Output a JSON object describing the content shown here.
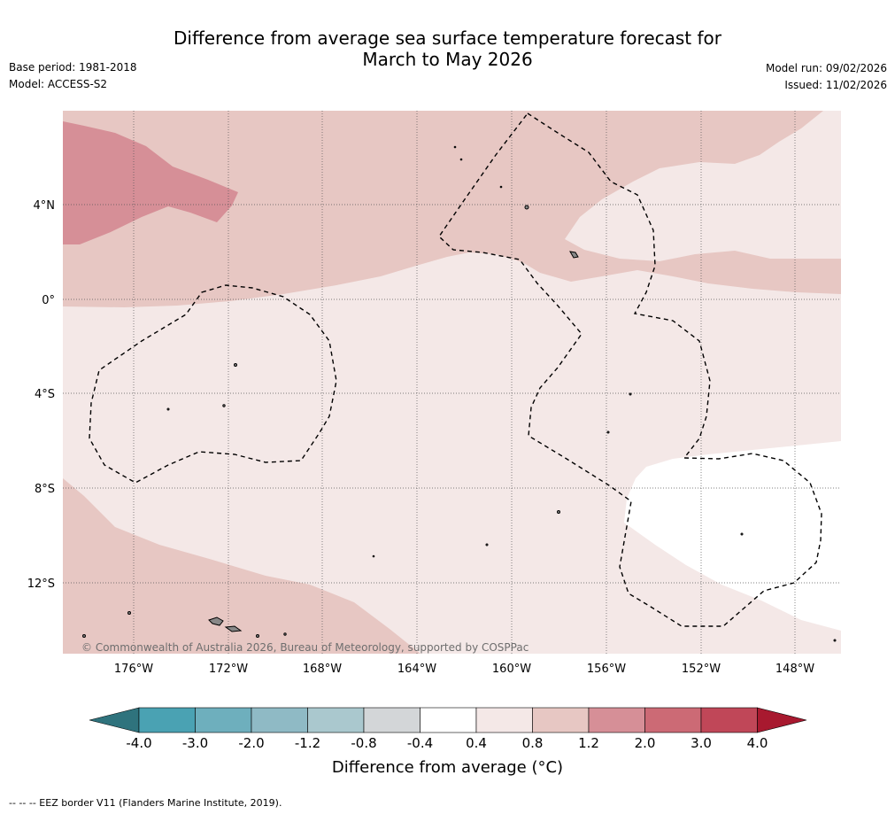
{
  "header": {
    "title_line1": "Difference from average sea surface temperature forecast for",
    "title_line2": "March to May 2026",
    "base_period": "Base period: 1981-2018",
    "model": "Model: ACCESS-S2",
    "model_run": "Model run: 09/02/2026",
    "issued": "Issued: 11/02/2026"
  },
  "map": {
    "lat_labels": [
      "4°N",
      "0°",
      "4°S",
      "8°S",
      "12°S"
    ],
    "lon_labels": [
      "176°W",
      "172°W",
      "168°W",
      "164°W",
      "160°W",
      "156°W",
      "152°W",
      "148°W"
    ],
    "credit": "© Commonwealth of Australia 2026, Bureau of Meteorology, supported by COSPPac",
    "bin_colors": {
      "0.4_0.8": "#f4e8e7",
      "0.8_1.2": "#e7c7c3",
      "1.2_2.0": "#d68f97",
      "-0.4_0.4": "#ffffff"
    }
  },
  "colorbar": {
    "tick_labels": [
      "-4.0",
      "-3.0",
      "-2.0",
      "-1.2",
      "-0.8",
      "-0.4",
      "0.4",
      "0.8",
      "1.2",
      "2.0",
      "3.0",
      "4.0"
    ],
    "colors": [
      "#2f737d",
      "#4aa2b3",
      "#6eafbd",
      "#8fbac5",
      "#aac8ce",
      "#d3d6d8",
      "#ffffff",
      "#f4e8e7",
      "#e7c7c3",
      "#d68f97",
      "#cc6a75",
      "#c04758",
      "#a8192f"
    ],
    "title": "Difference from average (°C)"
  },
  "footer": {
    "eez_note": "--  --  -- EEZ border V11 (Flanders Marine Institute, 2019)."
  }
}
